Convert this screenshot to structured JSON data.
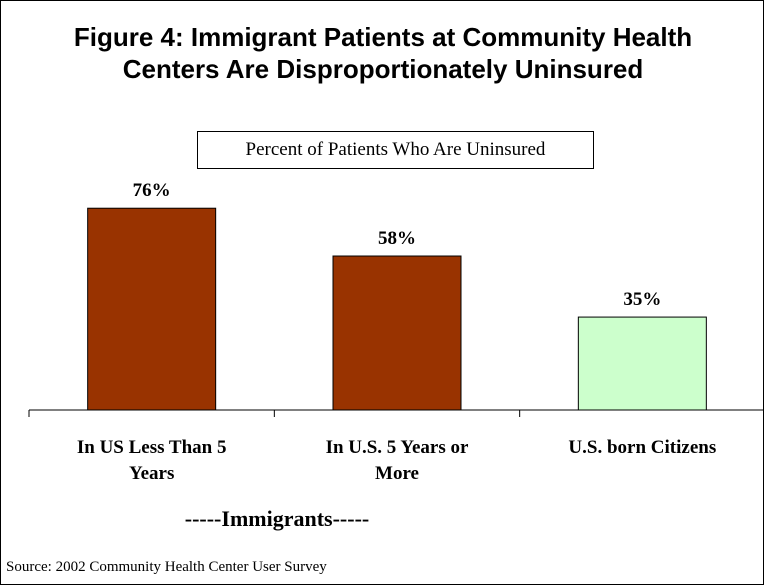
{
  "title": {
    "line1": "Figure 4:  Immigrant Patients at Community Health",
    "line2": "Centers Are Disproportionately Uninsured"
  },
  "chart_data": {
    "type": "bar",
    "title": "Figure 4:  Immigrant Patients at Community Health Centers Are Disproportionately Uninsured",
    "subtitle": "Percent of Patients Who Are Uninsured",
    "categories": [
      [
        "In US Less Than 5",
        "Years"
      ],
      [
        "In U.S. 5 Years or",
        "More"
      ],
      [
        "U.S. born Citizens"
      ]
    ],
    "values": [
      76,
      58,
      35
    ],
    "data_labels": [
      "76%",
      "58%",
      "35%"
    ],
    "bar_colors": [
      "#993300",
      "#993300",
      "#CCFFCC"
    ],
    "unit": "%",
    "ylim": [
      0,
      100
    ],
    "grid": false,
    "group_label": "-----Immigrants-----"
  },
  "source": "Source: 2002 Community Health Center User Survey"
}
